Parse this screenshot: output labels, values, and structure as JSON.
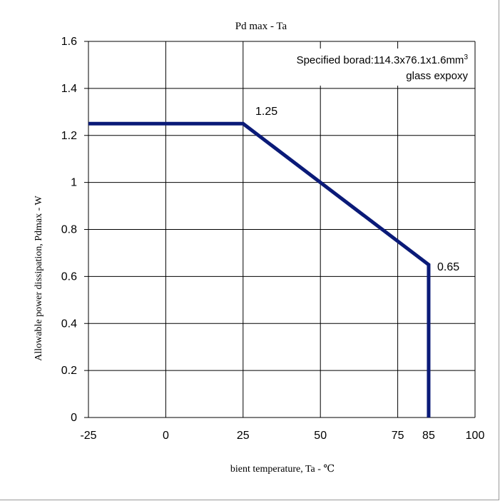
{
  "chart_data": {
    "type": "line",
    "title": "Pd max - Ta",
    "xlabel": "bient temperature,  Ta - ℃",
    "ylabel": "Allowable  power dissipation,  Pdmax - W",
    "xlim": [
      -25,
      100
    ],
    "ylim": [
      0,
      1.6
    ],
    "x_ticks": [
      -25,
      0,
      25,
      50,
      75,
      85,
      100
    ],
    "y_ticks": [
      0,
      0.2,
      0.4,
      0.6,
      0.8,
      1,
      1.2,
      1.4,
      1.6
    ],
    "x_tick_labels": [
      "-25",
      "0",
      "25",
      "50",
      "75",
      "85",
      "100"
    ],
    "y_tick_labels": [
      "0",
      "0.2",
      "0.4",
      "0.6",
      "0.8",
      "1",
      "1.2",
      "1.4",
      "1.6"
    ],
    "grid": true,
    "series": [
      {
        "color": "#0a1a78",
        "points": [
          [
            -25,
            1.25
          ],
          [
            25,
            1.25
          ],
          [
            85,
            0.65
          ],
          [
            85,
            0
          ]
        ]
      }
    ],
    "annotations": [
      {
        "text": "1.25",
        "x": 25,
        "y": 1.25
      },
      {
        "text": "0.65",
        "x": 85,
        "y": 0.65
      }
    ],
    "note_line1": "Specified borad:114.3x76.1x1.6mm",
    "note_sup": "3",
    "note_line2": "glass expoxy"
  }
}
